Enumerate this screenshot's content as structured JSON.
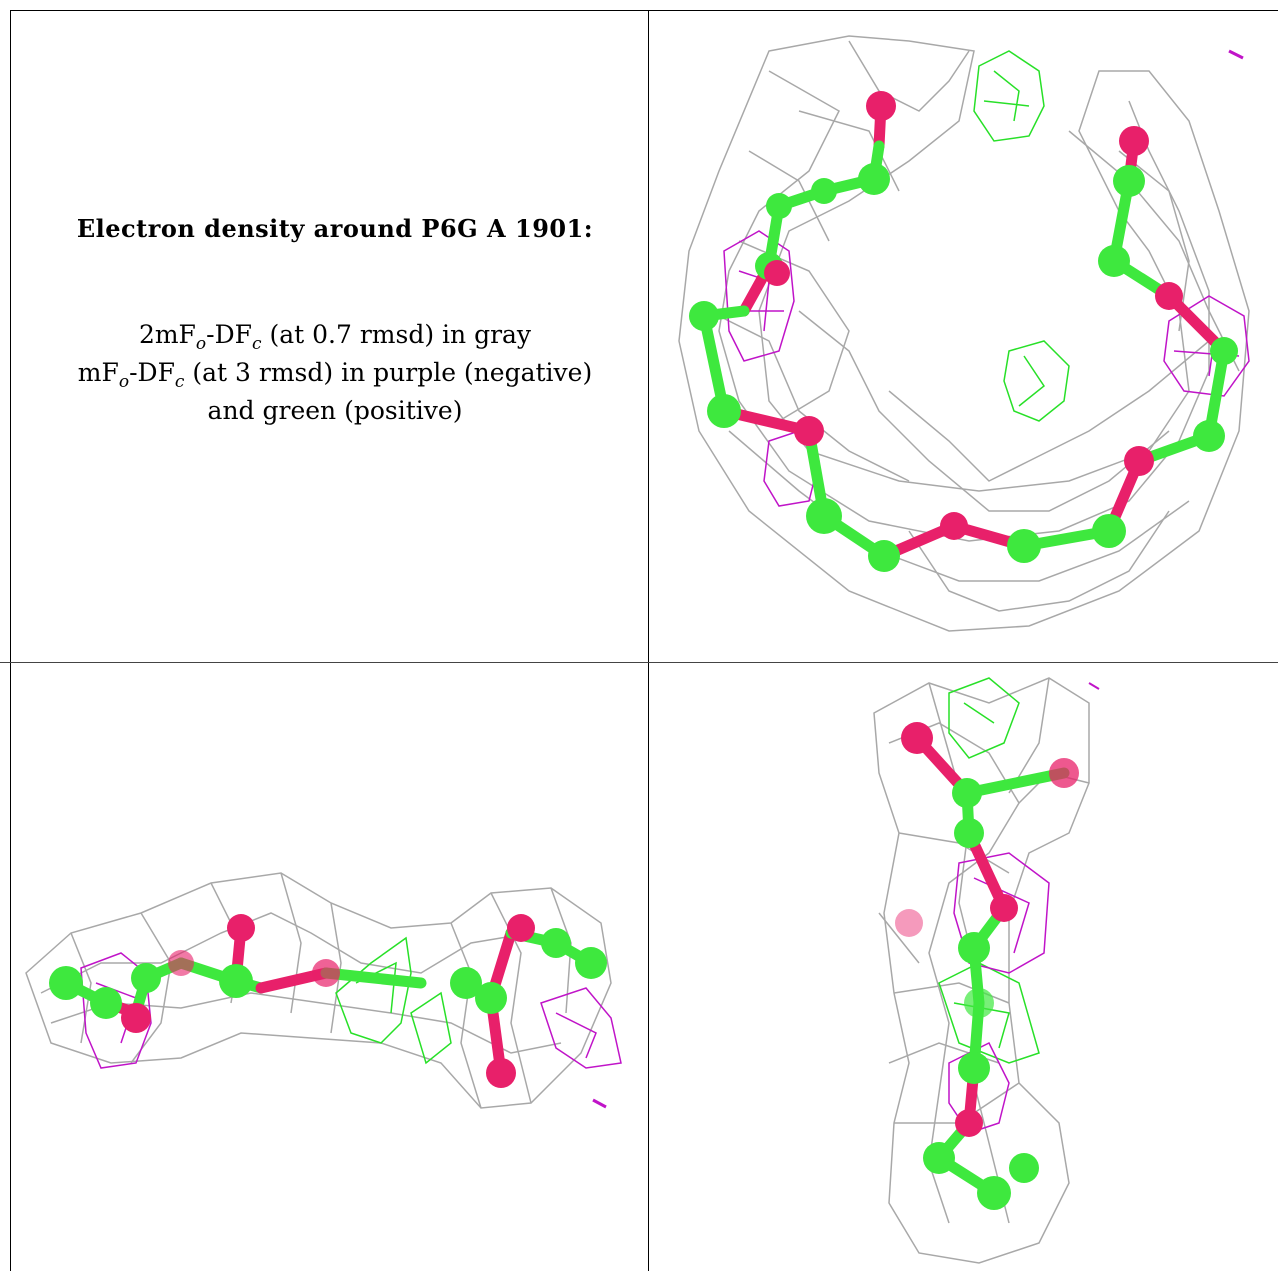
{
  "caption": {
    "title": "Electron density around P6G A 1901:",
    "line1_pre": "2mF",
    "line1_sub_o": "o",
    "line1_mid": "-DF",
    "line1_sub_c": "c",
    "line1_post": " (at 0.7 rmsd) in gray",
    "line2_pre": "mF",
    "line2_sub_o": "o",
    "line2_mid": "-DF",
    "line2_sub_c": "c",
    "line2_post": " (at 3 rmsd) in purple (negative)",
    "line3": "and green (positive)"
  },
  "colors": {
    "carbon": "#3ee83e",
    "oxygen": "#e8206a",
    "mesh_2fofc": "#9a9a9a",
    "mesh_negative": "#c014c8",
    "mesh_positive": "#28e028"
  },
  "panels": [
    {
      "name": "view-top-right",
      "content": "molecule-density-view"
    },
    {
      "name": "view-bottom-left",
      "content": "molecule-density-view"
    },
    {
      "name": "view-bottom-right",
      "content": "molecule-density-view"
    }
  ]
}
